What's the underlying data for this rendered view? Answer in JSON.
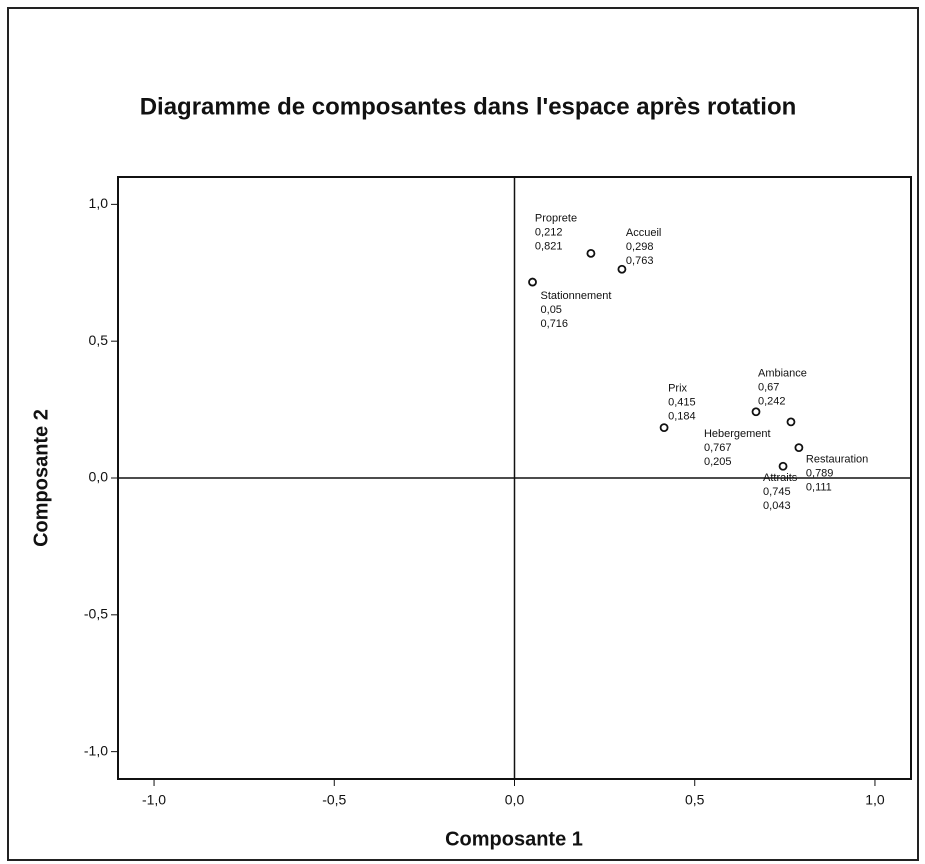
{
  "chart_data": {
    "type": "scatter",
    "title": "Diagramme de composantes dans l'espace après rotation",
    "x_label": "Composante 1",
    "y_label": "Composante 2",
    "point_labels": [
      "Proprete",
      "Accueil",
      "Stationnement",
      "Prix",
      "Ambiance",
      "Hebergement",
      "Restauration",
      "Attraits"
    ],
    "x": [
      0.212,
      0.298,
      0.05,
      0.415,
      0.67,
      0.767,
      0.789,
      0.745
    ],
    "x_value_labels": [
      "0,212",
      "0,298",
      "0,05",
      "0,415",
      "0,67",
      "0,767",
      "0,789",
      "0,745"
    ],
    "values": [
      0.821,
      0.763,
      0.716,
      0.184,
      0.242,
      0.205,
      0.111,
      0.043
    ],
    "value_labels": [
      "0,821",
      "0,763",
      "0,716",
      "0,184",
      "0,242",
      "0,205",
      "0,111",
      "0,043"
    ],
    "xlim": [
      -1.1,
      1.1
    ],
    "ylim": [
      -1.1,
      1.1
    ],
    "xticks": [
      {
        "value": -1,
        "label": "-1,0"
      },
      {
        "value": -0.5,
        "label": "-0,5"
      },
      {
        "value": 0,
        "label": "0,0"
      },
      {
        "value": 0.5,
        "label": "0,5"
      },
      {
        "value": 1,
        "label": "1,0"
      }
    ],
    "yticks": [
      {
        "value": -1,
        "label": "-1,0"
      },
      {
        "value": -0.5,
        "label": "-0,5"
      },
      {
        "value": 0,
        "label": "0,0"
      },
      {
        "value": 0.5,
        "label": "0,5"
      },
      {
        "value": 1,
        "label": "1,0"
      }
    ]
  }
}
